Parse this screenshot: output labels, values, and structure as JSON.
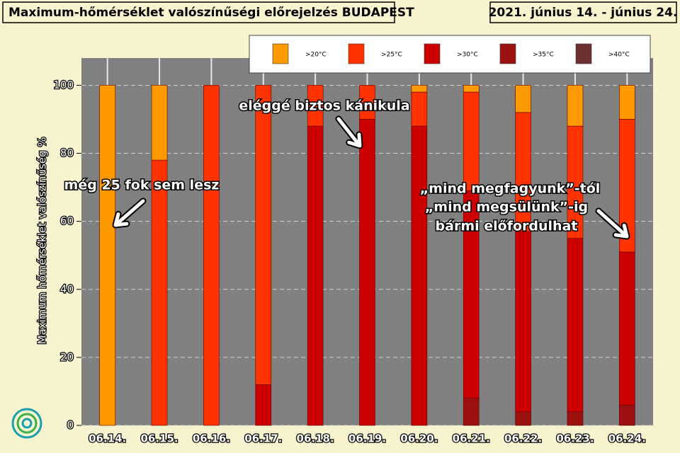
{
  "chart_data": {
    "type": "stacked-bar",
    "title": "Maximum-hőmérséklet valószínűségi előrejelzés BUDAPEST",
    "subtitle": "2021. június 14. - június 24.",
    "y_label": "Maximum hőmérséklet valószínűség %",
    "categories": [
      "06.14.",
      "06.15.",
      "06.16.",
      "06.17.",
      "06.18.",
      "06.19.",
      "06.20.",
      "06.21.",
      "06.22.",
      "06.23.",
      "06.24."
    ],
    "series": [
      {
        "name": ">40°C",
        "color": "#6b3030",
        "values": [
          0,
          0,
          0,
          0,
          0,
          0,
          0,
          0,
          0,
          0,
          0
        ]
      },
      {
        "name": ">35°C",
        "color": "#9c1010",
        "values": [
          0,
          0,
          0,
          0,
          0,
          0,
          0,
          8,
          4,
          4,
          6
        ]
      },
      {
        "name": ">30°C",
        "color": "#cc0000",
        "values": [
          0,
          0,
          0,
          12,
          88,
          90,
          88,
          61,
          53,
          51,
          45
        ]
      },
      {
        "name": ">25°C",
        "color": "#ff3300",
        "values": [
          0,
          78,
          100,
          88,
          12,
          10,
          10,
          29,
          35,
          33,
          39
        ]
      },
      {
        "name": ">20°C",
        "color": "#ff9900",
        "values": [
          100,
          22,
          0,
          0,
          0,
          0,
          2,
          2,
          8,
          12,
          10
        ]
      }
    ],
    "ylim": [
      0,
      108
    ],
    "yticks": [
      0,
      20,
      40,
      60,
      80,
      100
    ],
    "grid": true,
    "annotations": [
      "még 25 fok sem lesz",
      "eléggé biztos kánikula",
      "„mind megfagyunk”-tól",
      "„mind megsülünk”-ig",
      "bármi előfordulhat"
    ]
  }
}
